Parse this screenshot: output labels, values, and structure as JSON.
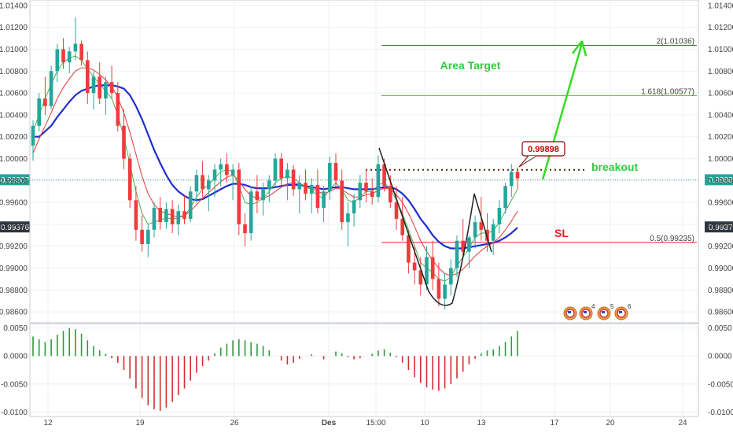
{
  "chart_data": {
    "type": "candlestick",
    "colors": {
      "up": "#26a69a",
      "down": "#ef3b3b",
      "ma_fast": "#4caf50",
      "ma_mid": "#e53935",
      "ma_slow": "#1e2ecc",
      "hist_up": "#2e9b3a",
      "hist_down": "#d32f2f",
      "fib_2": "#1f6a1f",
      "fib_1618": "#2ecc40",
      "fib_05": "#e02020",
      "breakout_line": "#3a2a00",
      "current_price": "#26a69a",
      "arrow": "#33dd22"
    },
    "price_panel": {
      "ylim": [
        0.985,
        1.0145
      ],
      "y_ticks": [
        "1.01400",
        "1.01200",
        "1.01000",
        "1.00800",
        "1.00600",
        "1.00400",
        "1.00200",
        "1.00000",
        "0.99800",
        "0.99600",
        "0.99400",
        "0.99200",
        "0.99000",
        "0.98800",
        "0.98600"
      ],
      "current_price_label": "0.99807",
      "current_price": 0.99807,
      "secondary_price_label": "0.99376",
      "secondary_price": 0.99376
    },
    "osc_panel": {
      "ylim": [
        -0.0108,
        0.0058
      ],
      "y_ticks": [
        "0.0050",
        "0.0000",
        "-0.0050",
        "-0.0100"
      ]
    },
    "x_axis": {
      "tick_labels": [
        "12",
        "19",
        "26",
        "Des",
        "15:00",
        "10",
        "13",
        "17",
        "20",
        "24"
      ]
    },
    "annotations": {
      "area_target": "Area Target",
      "breakout": "breakout",
      "sl": "SL",
      "breakout_price": "0.99898",
      "fib_2": "2(1.01036)",
      "fib_1618": "1.618(1.00577)",
      "fib_05": "0.5(0.99235)"
    },
    "levels": {
      "fib_2": 1.01036,
      "fib_1618": 1.00577,
      "fib_05": 0.99235,
      "breakout": 0.99898
    },
    "icons": [
      "flag-icon",
      "flag-icon",
      "flag-icon",
      "flag-icon"
    ],
    "icon_badges": [
      "4",
      "5",
      "6"
    ],
    "candles": [
      [
        1.0012,
        1.0035,
        0.9998,
        1.003
      ],
      [
        1.003,
        1.006,
        1.0025,
        1.0055
      ],
      [
        1.0055,
        1.0075,
        1.004,
        1.0048
      ],
      [
        1.0048,
        1.0085,
        1.0045,
        1.008
      ],
      [
        1.008,
        1.0105,
        1.007,
        1.01
      ],
      [
        1.01,
        1.011,
        1.0082,
        1.0088
      ],
      [
        1.0088,
        1.0102,
        1.0078,
        1.0098
      ],
      [
        1.0098,
        1.0129,
        1.009,
        1.0105
      ],
      [
        1.0105,
        1.0108,
        1.0085,
        1.009
      ],
      [
        1.009,
        1.0098,
        1.005,
        1.006
      ],
      [
        1.006,
        1.008,
        1.0045,
        1.0075
      ],
      [
        1.0075,
        1.0088,
        1.005,
        1.0055
      ],
      [
        1.0055,
        1.0075,
        1.004,
        1.007
      ],
      [
        1.007,
        1.0085,
        1.0055,
        1.006
      ],
      [
        1.006,
        1.007,
        1.0025,
        1.003
      ],
      [
        1.003,
        1.0045,
        0.999,
        1.0
      ],
      [
        1.0,
        1.0005,
        0.9955,
        0.9962
      ],
      [
        0.9962,
        0.9975,
        0.9925,
        0.9935
      ],
      [
        0.9935,
        0.9948,
        0.9915,
        0.9922
      ],
      [
        0.9922,
        0.994,
        0.991,
        0.9935
      ],
      [
        0.9935,
        0.996,
        0.9928,
        0.9955
      ],
      [
        0.9955,
        0.9965,
        0.9935,
        0.9942
      ],
      [
        0.9942,
        0.996,
        0.9936,
        0.9954
      ],
      [
        0.9954,
        0.9962,
        0.9932,
        0.994
      ],
      [
        0.994,
        0.9958,
        0.993,
        0.9952
      ],
      [
        0.9952,
        0.9966,
        0.994,
        0.9945
      ],
      [
        0.9945,
        0.9975,
        0.9942,
        0.997
      ],
      [
        0.997,
        0.999,
        0.996,
        0.9985
      ],
      [
        0.9985,
        0.9998,
        0.9965,
        0.9972
      ],
      [
        0.9972,
        0.9985,
        0.9952,
        0.998
      ],
      [
        0.998,
        0.9995,
        0.9965,
        0.999
      ],
      [
        0.999,
        1.0,
        0.9975,
        0.9995
      ],
      [
        0.9995,
        1.0005,
        0.9978,
        0.9985
      ],
      [
        0.9985,
        0.9995,
        0.9962,
        0.999
      ],
      [
        0.999,
        0.9996,
        0.993,
        0.994
      ],
      [
        0.994,
        0.995,
        0.992,
        0.9932
      ],
      [
        0.9932,
        0.9975,
        0.9925,
        0.997
      ],
      [
        0.997,
        0.9985,
        0.995,
        0.9962
      ],
      [
        0.9962,
        0.9978,
        0.9948,
        0.9972
      ],
      [
        0.9972,
        0.9985,
        0.996,
        0.998
      ],
      [
        0.998,
        1.0005,
        0.9975,
        1.0
      ],
      [
        1.0,
        1.0005,
        0.9975,
        0.9982
      ],
      [
        0.9982,
        0.9996,
        0.9962,
        0.999
      ],
      [
        0.999,
        0.9994,
        0.9966,
        0.9972
      ],
      [
        0.9972,
        0.9985,
        0.995,
        0.9978
      ],
      [
        0.9978,
        0.999,
        0.9962,
        0.9968
      ],
      [
        0.9968,
        0.9982,
        0.995,
        0.9976
      ],
      [
        0.9976,
        0.999,
        0.995,
        0.9955
      ],
      [
        0.9955,
        0.9975,
        0.9942,
        0.997
      ],
      [
        0.997,
        1.0002,
        0.9962,
        0.9996
      ],
      [
        0.9996,
        1.0005,
        0.9975,
        0.998
      ],
      [
        0.998,
        0.999,
        0.9935,
        0.9942
      ],
      [
        0.9942,
        0.996,
        0.992,
        0.995
      ],
      [
        0.995,
        0.9968,
        0.9938,
        0.9962
      ],
      [
        0.9962,
        0.9985,
        0.9955,
        0.9978
      ],
      [
        0.9978,
        0.999,
        0.996,
        0.997
      ],
      [
        0.997,
        0.9982,
        0.9958,
        0.9965
      ],
      [
        0.9965,
        1.0003,
        0.996,
        0.9995
      ],
      [
        0.9995,
        1.0,
        0.997,
        0.9975
      ],
      [
        0.9975,
        0.9985,
        0.9955,
        0.996
      ],
      [
        0.996,
        0.9975,
        0.9935,
        0.9945
      ],
      [
        0.9945,
        0.9965,
        0.9925,
        0.993
      ],
      [
        0.993,
        0.9935,
        0.9895,
        0.9905
      ],
      [
        0.9905,
        0.992,
        0.9885,
        0.9898
      ],
      [
        0.9898,
        0.991,
        0.9875,
        0.9885
      ],
      [
        0.9885,
        0.992,
        0.988,
        0.991
      ],
      [
        0.991,
        0.9925,
        0.988,
        0.989
      ],
      [
        0.989,
        0.9905,
        0.9865,
        0.9872
      ],
      [
        0.9872,
        0.9895,
        0.9862,
        0.9885
      ],
      [
        0.9885,
        0.9908,
        0.9875,
        0.99
      ],
      [
        0.99,
        0.993,
        0.9892,
        0.9925
      ],
      [
        0.9925,
        0.9945,
        0.991,
        0.9915
      ],
      [
        0.9915,
        0.993,
        0.99,
        0.9928
      ],
      [
        0.9928,
        0.9948,
        0.9918,
        0.9942
      ],
      [
        0.9942,
        0.9965,
        0.9925,
        0.9935
      ],
      [
        0.9935,
        0.995,
        0.9915,
        0.9925
      ],
      [
        0.9925,
        0.9945,
        0.9912,
        0.994
      ],
      [
        0.994,
        0.9962,
        0.9932,
        0.9955
      ],
      [
        0.9955,
        0.9978,
        0.995,
        0.9975
      ],
      [
        0.9975,
        0.9995,
        0.9965,
        0.9988
      ],
      [
        0.9988,
        0.9992,
        0.9972,
        0.9982
      ]
    ],
    "ma_fast": [
      1.0025,
      1.004,
      1.0055,
      1.0068,
      1.008,
      1.0088,
      1.0092,
      1.0094,
      1.009,
      1.0082,
      1.0075,
      1.0068,
      1.0062,
      1.0055,
      1.004,
      1.002,
      0.9995,
      0.997,
      0.995,
      0.994,
      0.9942,
      0.9944,
      0.9946,
      0.9945,
      0.9946,
      0.9948,
      0.9955,
      0.9965,
      0.9972,
      0.9976,
      0.9982,
      0.9988,
      0.999,
      0.9988,
      0.9975,
      0.996,
      0.9958,
      0.996,
      0.9964,
      0.997,
      0.9978,
      0.9982,
      0.9984,
      0.9982,
      0.9978,
      0.9974,
      0.9972,
      0.9966,
      0.9964,
      0.9972,
      0.9978,
      0.9972,
      0.9962,
      0.996,
      0.9965,
      0.997,
      0.997,
      0.9976,
      0.9978,
      0.9972,
      0.9962,
      0.995,
      0.9935,
      0.992,
      0.9905,
      0.99,
      0.9896,
      0.989,
      0.9888,
      0.9892,
      0.9902,
      0.991,
      0.9918,
      0.9928,
      0.9932,
      0.9932,
      0.9934,
      0.9942,
      0.9952,
      0.9962,
      0.9972
    ],
    "ma_mid": [
      1.0005,
      1.0018,
      1.003,
      1.0042,
      1.0055,
      1.0065,
      1.0073,
      1.008,
      1.0083,
      1.0083,
      1.0081,
      1.0077,
      1.0072,
      1.0066,
      1.0056,
      1.0042,
      1.0024,
      1.0004,
      0.9984,
      0.9968,
      0.9958,
      0.9952,
      0.995,
      0.9948,
      0.9947,
      0.9948,
      0.9952,
      0.9958,
      0.9964,
      0.9969,
      0.9974,
      0.9979,
      0.9983,
      0.9985,
      0.998,
      0.9972,
      0.9966,
      0.9964,
      0.9964,
      0.9966,
      0.997,
      0.9974,
      0.9977,
      0.9978,
      0.9977,
      0.9975,
      0.9973,
      0.997,
      0.9968,
      0.997,
      0.9973,
      0.9972,
      0.9968,
      0.9965,
      0.9965,
      0.9967,
      0.9968,
      0.9971,
      0.9973,
      0.9972,
      0.9967,
      0.996,
      0.995,
      0.9938,
      0.9925,
      0.9915,
      0.9907,
      0.99,
      0.9895,
      0.9893,
      0.9895,
      0.9899,
      0.9905,
      0.9911,
      0.9916,
      0.992,
      0.9923,
      0.9928,
      0.9935,
      0.9943,
      0.9952
    ],
    "ma_slow": [
      1.002,
      1.002,
      1.0025,
      1.003,
      1.0038,
      1.0045,
      1.0052,
      1.0058,
      1.0062,
      1.0064,
      1.0066,
      1.0067,
      1.0067,
      1.0067,
      1.0066,
      1.0064,
      1.0058,
      1.0048,
      1.0036,
      1.0022,
      1.0008,
      0.9996,
      0.9985,
      0.9976,
      0.997,
      0.9966,
      0.9963,
      0.9962,
      0.9963,
      0.9966,
      0.9969,
      0.9972,
      0.9975,
      0.9977,
      0.9977,
      0.9976,
      0.9974,
      0.9973,
      0.9973,
      0.9973,
      0.9974,
      0.9975,
      0.9976,
      0.9976,
      0.9976,
      0.9975,
      0.9974,
      0.9973,
      0.9972,
      0.9973,
      0.9974,
      0.9974,
      0.9973,
      0.9972,
      0.9972,
      0.9972,
      0.9972,
      0.9973,
      0.9974,
      0.9974,
      0.9972,
      0.9968,
      0.9962,
      0.9954,
      0.9945,
      0.9938,
      0.993,
      0.9924,
      0.992,
      0.9918,
      0.9918,
      0.9918,
      0.9919,
      0.992,
      0.9921,
      0.9922,
      0.9923,
      0.9925,
      0.9928,
      0.9932,
      0.9937
    ],
    "histogram": [
      0.0035,
      0.003,
      0.0025,
      0.003,
      0.0038,
      0.0045,
      0.005,
      0.0048,
      0.004,
      0.0028,
      0.0018,
      0.001,
      0.0004,
      -0.0004,
      -0.0012,
      -0.0025,
      -0.004,
      -0.0058,
      -0.0075,
      -0.0088,
      -0.0095,
      -0.0098,
      -0.0092,
      -0.0082,
      -0.007,
      -0.0058,
      -0.0044,
      -0.003,
      -0.0018,
      -0.0008,
      0.0005,
      0.0015,
      0.0022,
      0.0028,
      0.003,
      0.0028,
      0.0025,
      0.0022,
      0.0018,
      0.001,
      0.0,
      -0.0008,
      -0.0015,
      -0.0012,
      -0.0005,
      0.0,
      0.0003,
      0.0,
      -0.0006,
      0.0,
      0.0008,
      0.0005,
      -0.0002,
      -0.0006,
      -0.0004,
      0.0,
      0.0004,
      0.001,
      0.0012,
      0.0006,
      -0.0002,
      -0.0012,
      -0.0025,
      -0.0038,
      -0.0048,
      -0.0056,
      -0.006,
      -0.0062,
      -0.0058,
      -0.005,
      -0.004,
      -0.0028,
      -0.0015,
      -0.0005,
      0.0005,
      0.001,
      0.0012,
      0.0018,
      0.0025,
      0.0035,
      0.0045
    ]
  }
}
